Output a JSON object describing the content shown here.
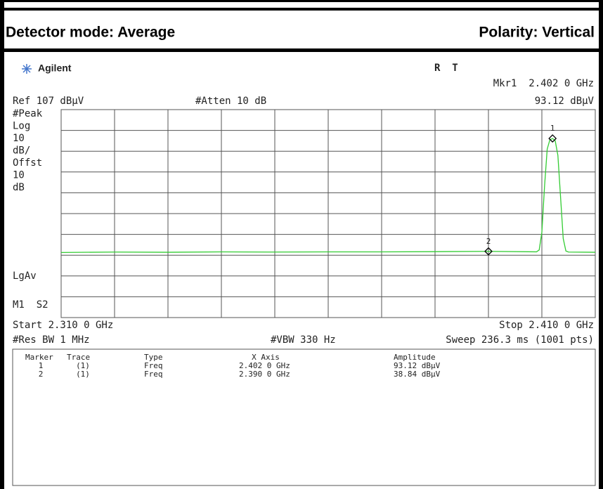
{
  "header": {
    "detector": "Detector mode: Average",
    "polarity": "Polarity: Vertical"
  },
  "analyzer": {
    "brand": "Agilent",
    "status": "R  T",
    "marker_readout": "Mkr1  2.402 0 GHz",
    "marker_amplitude": "93.12 dBµV",
    "ref_level": "Ref 107 dBµV",
    "attenuation": "#Atten 10 dB",
    "left_labels": [
      "#Peak",
      "Log",
      "10",
      "dB/",
      "Offst",
      "10",
      "dB"
    ],
    "trace_mode": "LgAv",
    "marker_mode": "M1  S2",
    "start": "Start 2.310 0 GHz",
    "stop": "Stop 2.410 0 GHz",
    "res_bw": "#Res BW 1 MHz",
    "vbw": "#VBW 330 Hz",
    "sweep": "Sweep 236.3 ms (1001 pts)"
  },
  "marker_table": {
    "columns": [
      "Marker",
      "Trace",
      "Type",
      "X Axis",
      "Amplitude"
    ],
    "rows": [
      [
        "1",
        "(1)",
        "Freq",
        "2.402 0 GHz",
        "93.12 dBµV"
      ],
      [
        "2",
        "(1)",
        "Freq",
        "2.390 0 GHz",
        "38.84 dBµV"
      ]
    ]
  },
  "chart_data": {
    "type": "line",
    "xlim": [
      2.31,
      2.41
    ],
    "ylim": [
      7,
      107
    ],
    "grid": {
      "x_divisions": 10,
      "y_divisions": 10
    },
    "series": [
      {
        "color": "#33cc33",
        "x": [
          2.31,
          2.32,
          2.33,
          2.34,
          2.35,
          2.36,
          2.37,
          2.38,
          2.39,
          2.399,
          2.3995,
          2.4,
          2.4005,
          2.401,
          2.4015,
          2.402,
          2.4025,
          2.403,
          2.4035,
          2.404,
          2.4045,
          2.405,
          2.41
        ],
        "values": [
          38.3,
          38.5,
          38.4,
          38.6,
          38.5,
          38.6,
          38.6,
          38.7,
          38.84,
          38.6,
          39.5,
          48,
          70,
          88,
          92.5,
          93.12,
          92,
          85,
          65,
          45,
          39,
          38.5,
          38.4
        ]
      }
    ],
    "markers": [
      {
        "label": "1",
        "x": 2.402,
        "y": 93.12
      },
      {
        "label": "2",
        "x": 2.39,
        "y": 38.84
      }
    ]
  }
}
